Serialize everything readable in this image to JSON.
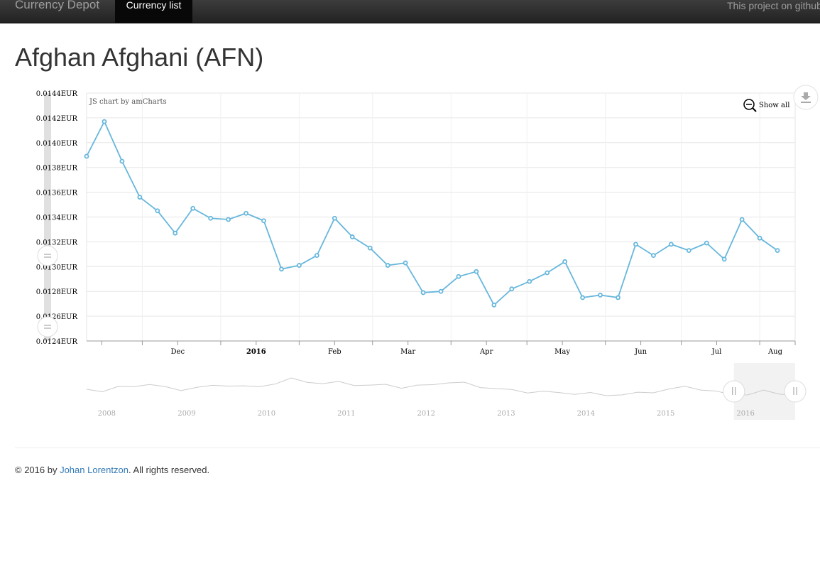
{
  "navbar": {
    "brand": "Currency Depot",
    "active_tab": "Currency list",
    "right_text": "This project on github"
  },
  "page": {
    "title": "Afghan Afghani (AFN)"
  },
  "chart_controls": {
    "credit": "JS chart by amCharts",
    "show_all": "Show all",
    "export_icon": "download-icon",
    "zoom_icon": "zoom-out-icon"
  },
  "chart_data": {
    "type": "line",
    "y_unit_suffix": "EUR",
    "ylim": [
      0.0124,
      0.0144
    ],
    "ytick_values": [
      0.0144,
      0.0142,
      0.014,
      0.0138,
      0.0136,
      0.0134,
      0.0132,
      0.013,
      0.0128,
      0.0126,
      0.0124
    ],
    "ytick_labels": [
      "0.0144EUR",
      "0.0142EUR",
      "0.0140EUR",
      "0.0138EUR",
      "0.0136EUR",
      "0.0134EUR",
      "0.0132EUR",
      "0.0130EUR",
      "0.0128EUR",
      "0.0126EUR",
      "0.0124EUR"
    ],
    "x_range": [
      "2015-11-09",
      "2016-08-15"
    ],
    "x_tick_labels": [
      {
        "label": "Dec",
        "date": "2015-12-01",
        "bold": false
      },
      {
        "label": "2016",
        "date": "2016-01-01",
        "bold": true
      },
      {
        "label": "Feb",
        "date": "2016-02-01",
        "bold": false
      },
      {
        "label": "Mar",
        "date": "2016-03-01",
        "bold": false
      },
      {
        "label": "Apr",
        "date": "2016-04-01",
        "bold": false
      },
      {
        "label": "May",
        "date": "2016-05-01",
        "bold": false
      },
      {
        "label": "Jun",
        "date": "2016-06-01",
        "bold": false
      },
      {
        "label": "Jul",
        "date": "2016-07-01",
        "bold": false
      },
      {
        "label": "Aug",
        "date": "2016-08-01",
        "bold": false
      }
    ],
    "series": [
      {
        "color": "#67b7dc",
        "points": [
          [
            "2015-11-09",
            0.01389
          ],
          [
            "2015-11-16",
            0.01417
          ],
          [
            "2015-11-23",
            0.01385
          ],
          [
            "2015-11-30",
            0.01356
          ],
          [
            "2015-12-07",
            0.01345
          ],
          [
            "2015-12-14",
            0.01327
          ],
          [
            "2015-12-21",
            0.01347
          ],
          [
            "2015-12-28",
            0.01339
          ],
          [
            "2016-01-04",
            0.01338
          ],
          [
            "2016-01-11",
            0.01343
          ],
          [
            "2016-01-18",
            0.01337
          ],
          [
            "2016-01-25",
            0.01298
          ],
          [
            "2016-02-01",
            0.01301
          ],
          [
            "2016-02-08",
            0.01309
          ],
          [
            "2016-02-15",
            0.01339
          ],
          [
            "2016-02-22",
            0.01324
          ],
          [
            "2016-02-29",
            0.01315
          ],
          [
            "2016-03-07",
            0.01301
          ],
          [
            "2016-03-14",
            0.01303
          ],
          [
            "2016-03-21",
            0.01279
          ],
          [
            "2016-03-28",
            0.0128
          ],
          [
            "2016-04-04",
            0.01292
          ],
          [
            "2016-04-11",
            0.01296
          ],
          [
            "2016-04-18",
            0.01269
          ],
          [
            "2016-04-25",
            0.01282
          ],
          [
            "2016-05-02",
            0.01288
          ],
          [
            "2016-05-09",
            0.01295
          ],
          [
            "2016-05-16",
            0.01304
          ],
          [
            "2016-05-23",
            0.01275
          ],
          [
            "2016-05-30",
            0.01277
          ],
          [
            "2016-06-06",
            0.01275
          ],
          [
            "2016-06-13",
            0.01318
          ],
          [
            "2016-06-20",
            0.01309
          ],
          [
            "2016-06-27",
            0.01318
          ],
          [
            "2016-07-04",
            0.01313
          ],
          [
            "2016-07-11",
            0.01319
          ],
          [
            "2016-07-18",
            0.01306
          ],
          [
            "2016-07-25",
            0.01338
          ],
          [
            "2016-08-01",
            0.01323
          ],
          [
            "2016-08-08",
            0.01313
          ]
        ]
      }
    ],
    "navigator": {
      "year_labels": [
        "2008",
        "2009",
        "2010",
        "2011",
        "2012",
        "2013",
        "2014",
        "2015",
        "2016"
      ],
      "selection": [
        "2015-11-09",
        "2016-08-15"
      ],
      "trend": [
        0.5,
        0.45,
        0.55,
        0.62,
        0.68,
        0.55,
        0.5,
        0.55,
        0.62,
        0.66,
        0.58,
        0.6,
        0.72,
        0.85,
        0.78,
        0.7,
        0.74,
        0.68,
        0.62,
        0.66,
        0.58,
        0.6,
        0.68,
        0.75,
        0.7,
        0.6,
        0.52,
        0.46,
        0.42,
        0.4,
        0.38,
        0.36,
        0.34,
        0.3,
        0.32,
        0.35,
        0.42,
        0.5,
        0.58,
        0.52,
        0.4,
        0.3,
        0.34,
        0.42,
        0.36,
        0.3
      ]
    }
  },
  "footer": {
    "prefix": "© 2016 by ",
    "author": "Johan Lorentzon",
    "suffix": ". All rights reserved."
  }
}
